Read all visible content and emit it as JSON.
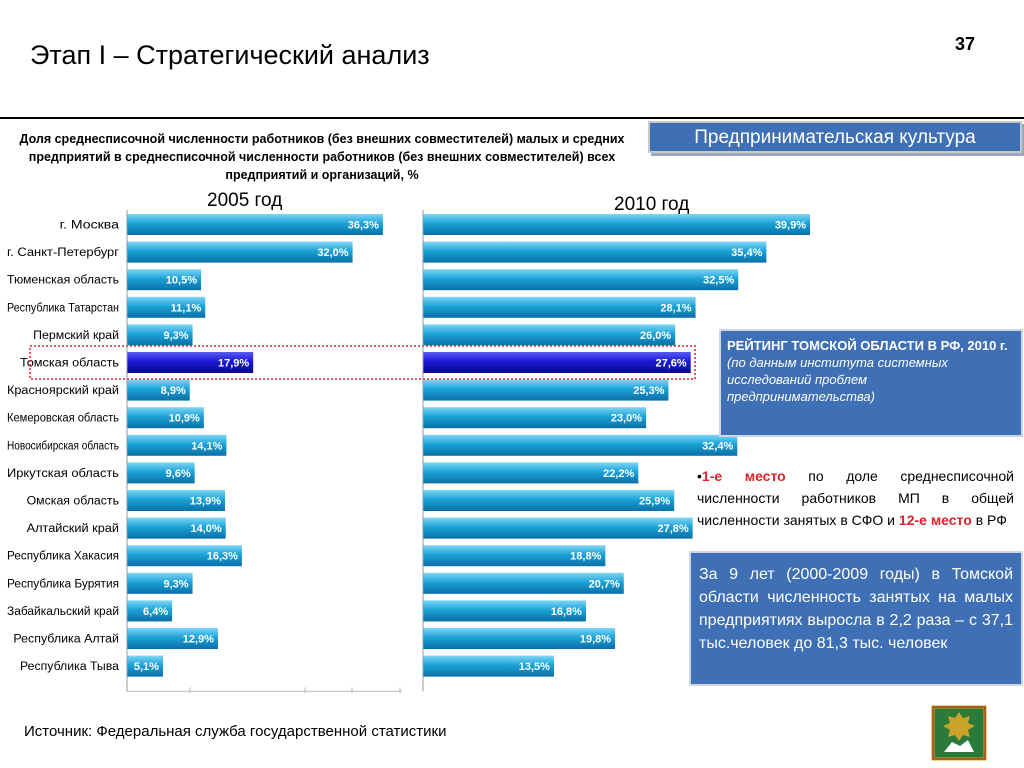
{
  "page": {
    "title": "Этап I – Стратегический анализ",
    "page_number": "37",
    "subtitle": "Доля среднесписочной численности работников (без внешних совместителей) малых и средних предприятий в среднесписочной численности работников (без внешних совместителей) всех предприятий и организаций, %",
    "banner": "Предпринимательская культура",
    "source": "Источник: Федеральная служба государственной статистики"
  },
  "rating": {
    "title": "РЕЙТИНГ ТОМСКОЙ ОБЛАСТИ В РФ, 2010 г.",
    "note": "(по данным института системных исследований проблем предпринимательства)"
  },
  "ranking": {
    "bullet": "•",
    "place1": "1-е место",
    "text1": "по доле среднесписочной численности работников МП в общей численности занятых в СФО и",
    "place2": "12-е место",
    "text2": "в РФ"
  },
  "growth": {
    "text": "За 9 лет (2000-2009 годы) в Томской области численность занятых на малых предприятиях выросла в 2,2 раза – с 37,1 тыс.человек до 81,3 тыс. человек"
  },
  "colors": {
    "bar": "#1aa3d8",
    "bar_highlight": "#1a1ad8",
    "highlight_frame": "#e0202a",
    "box": "#3f6fb5"
  },
  "chart_data": [
    {
      "type": "bar",
      "orientation": "horizontal",
      "title": "2005 год",
      "categories": [
        "г. Москва",
        "г. Санкт-Петербург",
        "Тюменская область",
        "Республика Татарстан",
        "Пермский край",
        "Томская область",
        "Красноярский край",
        "Кемеровская область",
        "Новосибирская область",
        "Иркутская область",
        "Омская область",
        "Алтайский край",
        "Республика Хакасия",
        "Республика Бурятия",
        "Забайкальский край",
        "Республика Алтай",
        "Республика Тыва"
      ],
      "values": [
        36.3,
        32.0,
        10.5,
        11.1,
        9.3,
        17.9,
        8.9,
        10.9,
        14.1,
        9.6,
        13.9,
        14.0,
        16.3,
        9.3,
        6.4,
        12.9,
        5.1
      ],
      "labels": [
        "36,3%",
        "32,0%",
        "10,5%",
        "11,1%",
        "9,3%",
        "17,9%",
        "8,9%",
        "10,9%",
        "14,1%",
        "9,6%",
        "13,9%",
        "14,0%",
        "16,3%",
        "9,3%",
        "6,4%",
        "12,9%",
        "5,1%"
      ],
      "highlight": "Томская область"
    },
    {
      "type": "bar",
      "orientation": "horizontal",
      "title": "2010 год",
      "categories": [
        "г. Москва",
        "г. Санкт-Петербург",
        "Тюменская область",
        "Республика Татарстан",
        "Пермский край",
        "Томская область",
        "Красноярский край",
        "Кемеровская область",
        "Новосибирская область",
        "Иркутская область",
        "Омская область",
        "Алтайский край",
        "Республика Хакасия",
        "Республика Бурятия",
        "Забайкальский край",
        "Республика Алтай",
        "Республика Тыва"
      ],
      "values": [
        39.9,
        35.4,
        32.5,
        28.1,
        26.0,
        27.6,
        25.3,
        23.0,
        32.4,
        22.2,
        25.9,
        27.8,
        18.8,
        20.7,
        16.8,
        19.8,
        13.5
      ],
      "labels": [
        "39,9%",
        "35,4%",
        "32,5%",
        "28,1%",
        "26,0%",
        "27,6%",
        "25,3%",
        "23,0%",
        "32,4%",
        "22,2%",
        "25,9%",
        "27,8%",
        "18,8%",
        "20,7%",
        "16,8%",
        "19,8%",
        "13,5%"
      ],
      "highlight": "Томская область"
    }
  ]
}
